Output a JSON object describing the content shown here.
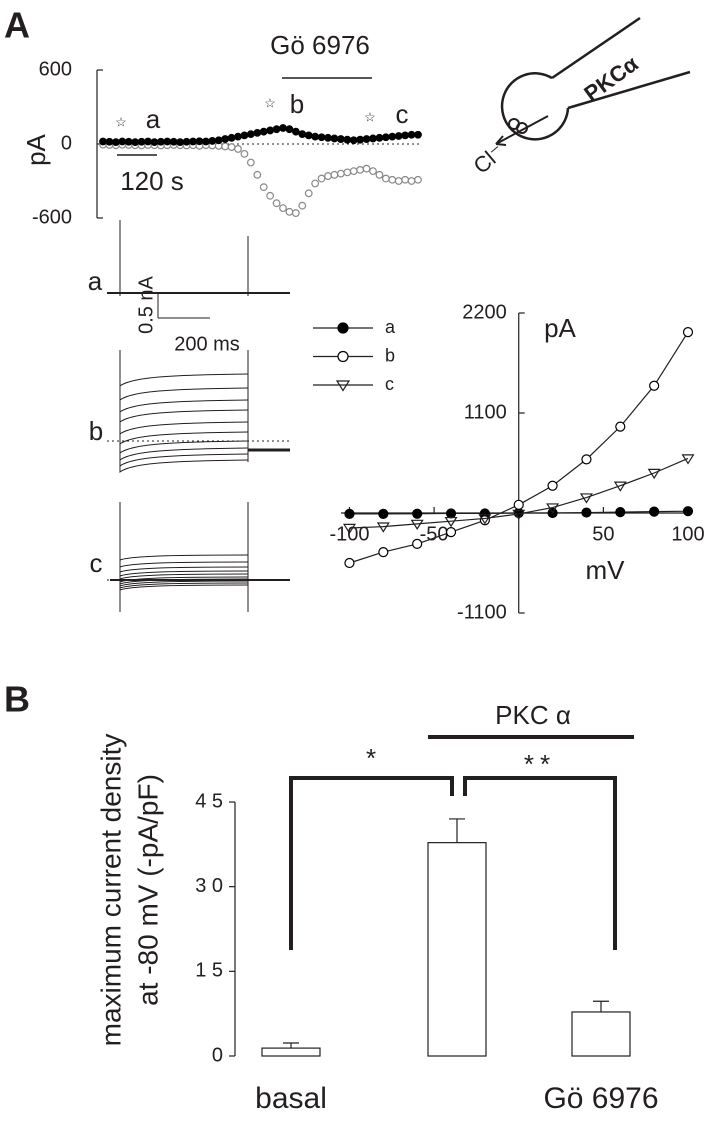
{
  "panel_labels": [
    "A",
    "B"
  ],
  "chart_data": [
    {
      "type": "line",
      "ylabel": "pA",
      "ylim": [
        -600,
        600
      ],
      "yticks": [
        -600,
        0,
        600
      ],
      "line": false,
      "series": [
        {
          "color": "#888888",
          "fill": "#ffffff",
          "marker": "circle",
          "values": [
            -5,
            -8,
            -10,
            -6,
            -8,
            -10,
            -12,
            -8,
            -10,
            -12,
            -10,
            -8,
            -10,
            -12,
            -10,
            -15,
            -10,
            -12,
            -15,
            -20,
            -25,
            -40,
            -80,
            -150,
            -250,
            -350,
            -420,
            -480,
            -520,
            -550,
            -560,
            -500,
            -400,
            -320,
            -280,
            -260,
            -250,
            -240,
            -230,
            -220,
            -210,
            -200,
            -220,
            -250,
            -280,
            -290,
            -300,
            -290,
            -300,
            -290
          ]
        },
        {
          "color": "#000000",
          "fill": "#000000",
          "marker": "circle",
          "values": [
            20,
            18,
            15,
            20,
            18,
            15,
            18,
            20,
            15,
            18,
            20,
            18,
            15,
            18,
            20,
            22,
            20,
            25,
            30,
            40,
            50,
            60,
            70,
            80,
            90,
            100,
            110,
            120,
            130,
            120,
            100,
            80,
            70,
            60,
            55,
            50,
            45,
            40,
            35,
            30,
            35,
            40,
            45,
            50,
            55,
            60,
            65,
            70,
            75,
            75
          ]
        }
      ],
      "annotations": {
        "drug": "Gö 6976",
        "points": [
          "a",
          "b",
          "c"
        ],
        "star": "☆",
        "scale": "120 s"
      }
    },
    {
      "type": "line",
      "xlabel": "mV",
      "ylabel": "pA",
      "line": true,
      "x": [
        -100,
        -80,
        -60,
        -40,
        -20,
        0,
        20,
        40,
        60,
        80,
        100
      ],
      "xlim": [
        -105,
        100
      ],
      "ylim": [
        -1100,
        2200
      ],
      "xticks": [
        -100,
        -50,
        50,
        100
      ],
      "yticks": [
        -1100,
        1100,
        2200
      ],
      "series": [
        {
          "name": "a",
          "color": "#000000",
          "fill": "#000000",
          "marker": "circle",
          "values": [
            -10,
            -10,
            -8,
            -5,
            -5,
            0,
            0,
            5,
            10,
            15,
            20
          ]
        },
        {
          "name": "b",
          "color": "#000000",
          "fill": "#ffffff",
          "marker": "circle",
          "values": [
            -550,
            -430,
            -340,
            -210,
            -80,
            90,
            300,
            590,
            950,
            1400,
            1990
          ]
        },
        {
          "name": "c",
          "color": "#000000",
          "fill": "#ffffff",
          "marker": "triangle",
          "values": [
            -165,
            -150,
            -120,
            -90,
            -60,
            -10,
            60,
            170,
            300,
            440,
            600
          ]
        }
      ]
    },
    {
      "type": "bar",
      "ylabel": [
        "maximum current density",
        "at -80 mV (-pA/pF)"
      ],
      "categories": [
        "basal",
        null,
        "Gö 6976"
      ],
      "values": [
        1.4,
        37.8,
        7.8
      ],
      "errors": [
        0.9,
        4.2,
        1.9
      ],
      "color": "#ffffff",
      "ylim": [
        0,
        45
      ],
      "yticks": [
        0,
        {
          "value": 15,
          "label": "1 5"
        },
        {
          "value": 30,
          "label": "3 0"
        },
        {
          "value": 45,
          "label": "4 5"
        }
      ],
      "annotations": {
        "significance": [
          "*",
          "**"
        ],
        "group": "PKC α"
      }
    }
  ],
  "traces": {
    "labels": [
      "a",
      "b",
      "c"
    ],
    "current_scale": "0.5 nA",
    "time_scale": "200 ms"
  },
  "diagram": {
    "kinase": "PKCα",
    "ion": "Cl⁻"
  }
}
